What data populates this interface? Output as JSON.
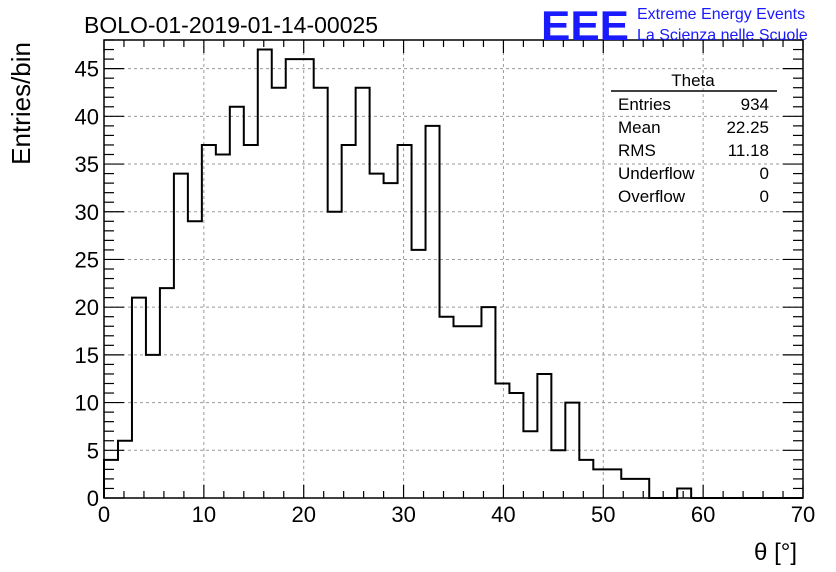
{
  "chart_data": {
    "type": "bar",
    "title": "BOLO-01-2019-01-14-00025",
    "xlabel": "θ [°]",
    "ylabel": "Entries/bin",
    "xlim": [
      0,
      70
    ],
    "ylim": [
      0,
      48
    ],
    "grid": true,
    "legend_position": "top-right",
    "bin_width": 1.4,
    "x_ticks": [
      "0",
      "10",
      "20",
      "30",
      "40",
      "50",
      "60",
      "70"
    ],
    "y_ticks": [
      "0",
      "5",
      "10",
      "15",
      "20",
      "25",
      "30",
      "35",
      "40",
      "45"
    ],
    "x_tick_values": [
      0,
      10,
      20,
      30,
      40,
      50,
      60,
      70
    ],
    "y_tick_values": [
      0,
      5,
      10,
      15,
      20,
      25,
      30,
      35,
      40,
      45
    ],
    "bin_edges_start": 0,
    "values": [
      4,
      6,
      21,
      15,
      22,
      34,
      29,
      37,
      36,
      41,
      37,
      47,
      43,
      46,
      46,
      43,
      30,
      37,
      43,
      34,
      33,
      37,
      26,
      39,
      19,
      18,
      18,
      20,
      12,
      11,
      7,
      13,
      5,
      10,
      4,
      3,
      3,
      2,
      2,
      0,
      0,
      1,
      0,
      0,
      0,
      0,
      0,
      0,
      0,
      0
    ],
    "stats": {
      "name": "Theta",
      "rows": [
        {
          "label": "Entries",
          "value": "934"
        },
        {
          "label": "Mean",
          "value": "22.25"
        },
        {
          "label": "RMS",
          "value": "11.18"
        },
        {
          "label": "Underflow",
          "value": "0"
        },
        {
          "label": "Overflow",
          "value": "0"
        }
      ]
    }
  },
  "logo": {
    "text": "EEE",
    "line1": "Extreme Energy Events",
    "line2": "La Scienza nelle Scuole",
    "color": "#1a1aff"
  },
  "colors": {
    "histogram": "#000000",
    "grid": "#9a9a9a",
    "logo": "#1a1aff"
  }
}
